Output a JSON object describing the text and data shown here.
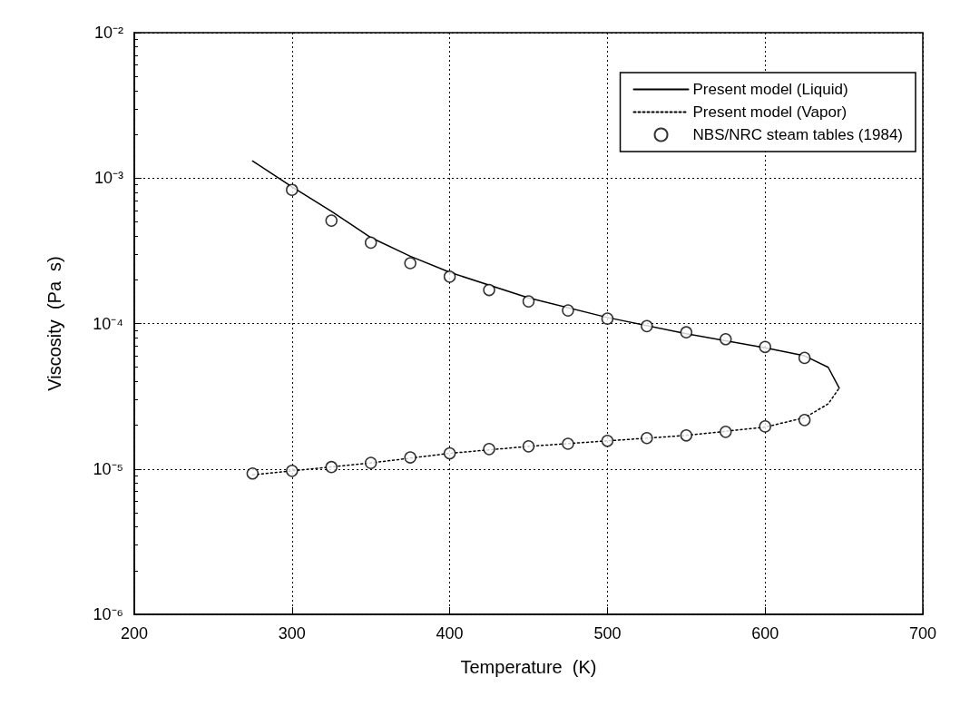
{
  "chart_data": {
    "type": "line",
    "xlabel": "Temperature  (K)",
    "ylabel": "Viscosity  (Pa  s)",
    "xlim": [
      200,
      700
    ],
    "xticks": [
      200,
      300,
      400,
      500,
      600,
      700
    ],
    "ylim": [
      1e-06,
      0.01
    ],
    "log": "y",
    "yticks": [
      {
        "value": 1e-06,
        "label": "10⁻⁶"
      },
      {
        "value": 1e-05,
        "label": "10⁻⁵"
      },
      {
        "value": 0.0001,
        "label": "10⁻⁴"
      },
      {
        "value": 0.001,
        "label": "10⁻³"
      },
      {
        "value": 0.01,
        "label": "10⁻²"
      }
    ],
    "grid": true,
    "legend": "top right",
    "series": [
      {
        "name": "Present model (Liquid)",
        "color": "#000000",
        "line_style": "solid",
        "marker": "none",
        "x": [
          275,
          300,
          325,
          350,
          375,
          400,
          450,
          500,
          550,
          600,
          625,
          640,
          647
        ],
        "values": [
          0.00131,
          0.00087,
          0.00059,
          0.00039,
          0.00029,
          0.000225,
          0.00015,
          0.00011,
          8.5e-05,
          6.8e-05,
          6e-05,
          5e-05,
          3.6e-05
        ]
      },
      {
        "name": "Present model (Vapor)",
        "color": "#000000",
        "line_style": "dotted",
        "marker": "none",
        "x": [
          275,
          300,
          350,
          400,
          450,
          500,
          550,
          600,
          625,
          640,
          647
        ],
        "values": [
          9.1e-06,
          9.7e-06,
          1.1e-05,
          1.28e-05,
          1.43e-05,
          1.56e-05,
          1.7e-05,
          1.94e-05,
          2.25e-05,
          2.8e-05,
          3.6e-05
        ]
      },
      {
        "name": "NBS/NRC steam tables (1984)",
        "type": "scatter",
        "color": "#000000",
        "marker": "circle",
        "x": [
          300,
          325,
          350,
          375,
          400,
          425,
          450,
          475,
          500,
          525,
          550,
          575,
          600,
          625,
          275,
          300,
          325,
          350,
          375,
          400,
          425,
          450,
          475,
          500,
          525,
          550,
          575,
          600,
          625
        ],
        "values": [
          0.00083,
          0.00051,
          0.00036,
          0.00026,
          0.00021,
          0.00017,
          0.000142,
          0.000123,
          0.000108,
          9.6e-05,
          8.7e-05,
          7.8e-05,
          6.9e-05,
          5.8e-05,
          9.3e-06,
          9.7e-06,
          1.03e-05,
          1.1e-05,
          1.2e-05,
          1.28e-05,
          1.37e-05,
          1.43e-05,
          1.49e-05,
          1.56e-05,
          1.63e-05,
          1.7e-05,
          1.8e-05,
          1.96e-05,
          2.17e-05
        ]
      }
    ]
  }
}
